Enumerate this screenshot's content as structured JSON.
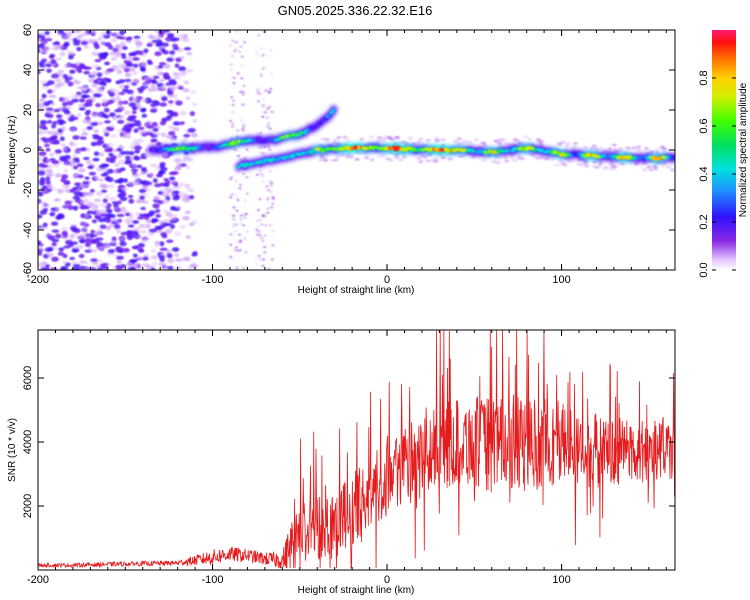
{
  "title": "GN05.2025.336.22.32.E16",
  "chart_data": [
    {
      "type": "heatmap",
      "name": "spectrogram",
      "xlabel": "Height of straight line (km)",
      "ylabel": "Frequency (Hz)",
      "xlim": [
        -200,
        165
      ],
      "ylim": [
        -60,
        60
      ],
      "x_ticks": [
        -200,
        -100,
        0,
        100
      ],
      "x_tick_labels": [
        "-200",
        "-100",
        "0",
        "100"
      ],
      "y_ticks": [
        -60,
        -40,
        -20,
        0,
        20,
        40,
        60
      ],
      "y_tick_labels": [
        "-60",
        "-40",
        "-20",
        "0",
        "20",
        "40",
        "60"
      ],
      "colorbar": {
        "label": "Normalized spectral amplitude",
        "range": [
          0,
          1
        ],
        "ticks": [
          0.0,
          0.2,
          0.4,
          0.6,
          0.8
        ],
        "tick_labels": [
          "0.0",
          "0.2",
          "0.4",
          "0.6",
          "0.8"
        ]
      },
      "features": [
        {
          "name": "main trace",
          "points": [
            [
              -135,
              0
            ],
            [
              -110,
              1
            ],
            [
              -95,
              2
            ],
            [
              -80,
              5
            ],
            [
              -65,
              5
            ],
            [
              -50,
              8
            ],
            [
              -40,
              12
            ],
            [
              -30,
              20
            ]
          ]
        },
        {
          "name": "lower trace",
          "points": [
            [
              -85,
              -8
            ],
            [
              -60,
              -4
            ],
            [
              -40,
              0
            ],
            [
              -20,
              1
            ],
            [
              0,
              1
            ],
            [
              20,
              0
            ],
            [
              40,
              0
            ],
            [
              60,
              -1
            ],
            [
              80,
              1
            ],
            [
              100,
              -2
            ],
            [
              120,
              -3
            ],
            [
              140,
              -4
            ],
            [
              165,
              -4
            ]
          ]
        }
      ]
    },
    {
      "type": "line",
      "name": "snr",
      "xlabel": "Height of straight line (km)",
      "ylabel": "SNR (10 * v/v)",
      "color": "#e41a1c",
      "xlim": [
        -200,
        165
      ],
      "ylim": [
        0,
        7500
      ],
      "x_ticks": [
        -200,
        -100,
        0,
        100
      ],
      "x_tick_labels": [
        "-200",
        "-100",
        "0",
        "100"
      ],
      "y_ticks": [
        2000,
        4000,
        6000
      ],
      "y_tick_labels": [
        "2000",
        "4000",
        "6000"
      ],
      "envelope": {
        "x": [
          -200,
          -180,
          -160,
          -140,
          -120,
          -110,
          -100,
          -90,
          -80,
          -70,
          -60,
          -50,
          -40,
          -30,
          -20,
          -10,
          0,
          10,
          20,
          30,
          40,
          50,
          60,
          70,
          80,
          90,
          100,
          110,
          120,
          130,
          140,
          150,
          160,
          165
        ],
        "y": [
          150,
          150,
          180,
          200,
          220,
          300,
          400,
          500,
          450,
          350,
          300,
          1100,
          1400,
          1500,
          1800,
          2300,
          3000,
          3300,
          3500,
          3800,
          4000,
          4000,
          3900,
          4000,
          3900,
          4000,
          4000,
          3800,
          3700,
          3700,
          3700,
          3700,
          3800,
          3600
        ]
      },
      "noise": {
        "x": [
          -200,
          -120,
          -100,
          -70,
          -60,
          -55,
          -40,
          -20,
          0,
          20,
          40,
          60,
          80,
          100,
          120,
          140,
          165
        ],
        "amplitude": [
          60,
          80,
          250,
          200,
          300,
          900,
          1100,
          1200,
          1200,
          1300,
          1400,
          1500,
          1500,
          1400,
          1200,
          1000,
          900
        ]
      }
    }
  ]
}
